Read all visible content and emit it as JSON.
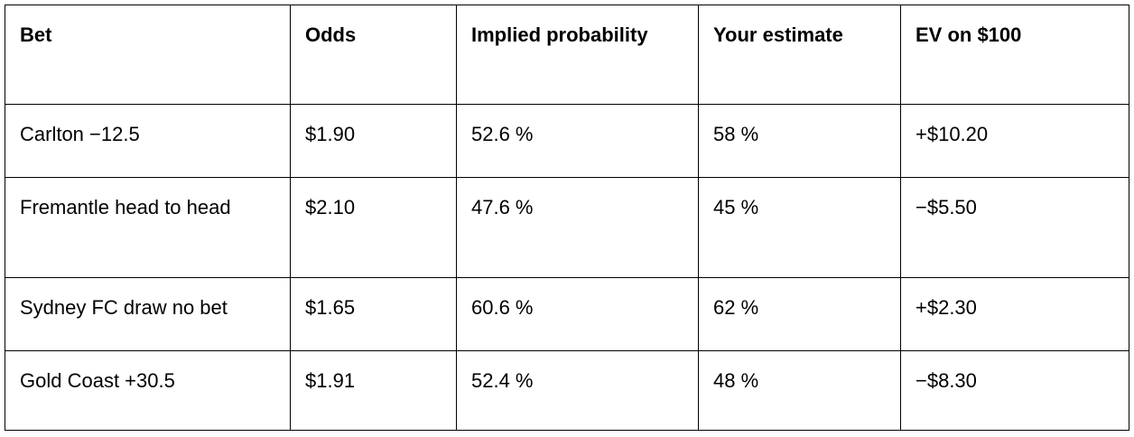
{
  "table": {
    "header": [
      "Bet",
      "Odds",
      "Implied probability",
      "Your estimate",
      "EV on $100"
    ],
    "rows": [
      [
        "Carlton −12.5",
        "$1.90",
        "52.6 %",
        "58 %",
        "+$10.20"
      ],
      [
        "Fremantle head to head",
        "$2.10",
        "47.6 %",
        "45 %",
        "−$5.50"
      ],
      [
        "Sydney FC draw no bet",
        "$1.65",
        "60.6 %",
        "62 %",
        "+$2.30"
      ],
      [
        "Gold Coast +30.5",
        "$1.91",
        "52.4 %",
        "48 %",
        "−$8.30"
      ]
    ]
  }
}
